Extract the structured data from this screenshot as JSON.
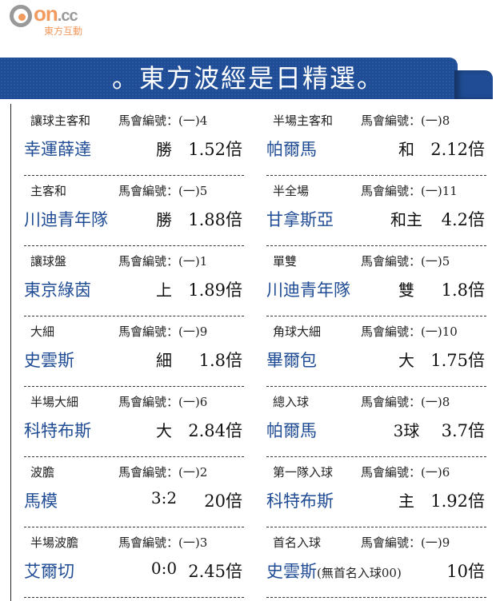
{
  "logo": {
    "brand": "on",
    "tld": ".cc",
    "sub": "東方互動",
    "colors": {
      "orange": "#f29b5f",
      "gray": "#999999"
    }
  },
  "banner": {
    "title": "。東方波經是日精選。",
    "color": "#1f4c94"
  },
  "left": [
    {
      "label": "讓球主客和",
      "code": "馬會編號：(一)4",
      "team": "幸運薛達",
      "pick": "勝",
      "odds": "1.52倍"
    },
    {
      "label": "主客和",
      "code": "馬會編號：(一)5",
      "team": "川迪青年隊",
      "pick": "勝",
      "odds": "1.88倍"
    },
    {
      "label": "讓球盤",
      "code": "馬會編號：(一)1",
      "team": "東京綠茵",
      "pick": "上",
      "odds": "1.89倍"
    },
    {
      "label": "大細",
      "code": "馬會編號：(一)9",
      "team": "史雲斯",
      "pick": "細",
      "odds": "1.8倍"
    },
    {
      "label": "半場大細",
      "code": "馬會編號：(一)6",
      "team": "科特布斯",
      "pick": "大",
      "odds": "2.84倍"
    },
    {
      "label": "波膽",
      "code": "馬會編號：(一)2",
      "team": "馬模",
      "pick": "3:2",
      "odds": "20倍"
    },
    {
      "label": "半場波膽",
      "code": "馬會編號：(一)3",
      "team": "艾爾切",
      "pick": "0:0",
      "odds": "2.45倍"
    }
  ],
  "right": [
    {
      "label": "半場主客和",
      "code": "馬會編號：(一)8",
      "team": "帕爾馬",
      "pick": "和",
      "odds": "2.12倍"
    },
    {
      "label": "半全場",
      "code": "馬會編號：(一)11",
      "team": "甘拿斯亞",
      "pick": "和主",
      "odds": "4.2倍"
    },
    {
      "label": "單雙",
      "code": "馬會編號：(一)5",
      "team": "川迪青年隊",
      "pick": "雙",
      "odds": "1.8倍"
    },
    {
      "label": "角球大細",
      "code": "馬會編號：(一)10",
      "team": "畢爾包",
      "pick": "大",
      "odds": "1.75倍"
    },
    {
      "label": "總入球",
      "code": "馬會編號：(一)8",
      "team": "帕爾馬",
      "pick": "3球",
      "odds": "3.7倍"
    },
    {
      "label": "第一隊入球",
      "code": "馬會編號：(一)6",
      "team": "科特布斯",
      "pick": "主",
      "odds": "1.92倍"
    },
    {
      "label": "首名入球",
      "code": "馬會編號：(一)9",
      "team": "史雲斯",
      "note": "(無首名入球00)",
      "pick": "",
      "odds": "10倍"
    }
  ]
}
